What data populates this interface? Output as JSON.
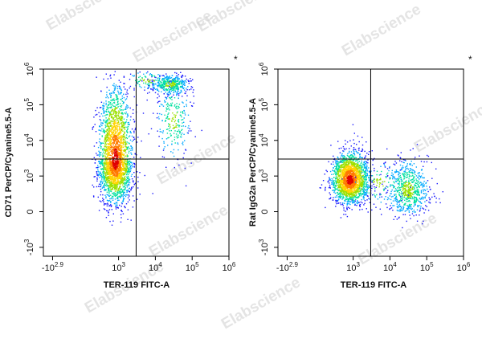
{
  "watermark": {
    "text": "Elabscience",
    "color": "#cccccc"
  },
  "colormap": [
    "#1a1aff",
    "#00a8ff",
    "#00e0a0",
    "#9be000",
    "#ffd400",
    "#ff7a00",
    "#e00000"
  ],
  "chart_data": [
    {
      "type": "scatter",
      "subtype": "flow-cytometry-density-plot",
      "xlabel": "TER-119 FITC-A",
      "ylabel": "CD71 PerCP/Cyanine5.5-A",
      "corner_mark": "*",
      "xscale": "biexponential",
      "yscale": "biexponential",
      "xticks": [
        {
          "value": -794,
          "base": "-10",
          "exp": "2.9"
        },
        {
          "value": 1000,
          "base": "10",
          "exp": "3"
        },
        {
          "value": 10000,
          "base": "10",
          "exp": "4"
        },
        {
          "value": 100000,
          "base": "10",
          "exp": "5"
        },
        {
          "value": 1000000,
          "base": "10",
          "exp": "6"
        }
      ],
      "yticks": [
        {
          "value": -1000,
          "base": "-10",
          "exp": "3"
        },
        {
          "value": 0,
          "base": "0",
          "exp": ""
        },
        {
          "value": 1000,
          "base": "10",
          "exp": "3"
        },
        {
          "value": 10000,
          "base": "10",
          "exp": "4"
        },
        {
          "value": 100000,
          "base": "10",
          "exp": "5"
        },
        {
          "value": 1000000,
          "base": "10",
          "exp": "6"
        }
      ],
      "gate": {
        "x": 3000,
        "y": 3000
      },
      "populations": [
        {
          "name": "CD71 high / TER-119 low",
          "x_center": 900,
          "y_center": 2500,
          "relative_density": "very high"
        },
        {
          "name": "CD71 high / TER-119 high",
          "x_center": 25000,
          "y_center": 400000,
          "relative_density": "moderate"
        },
        {
          "name": "CD71 mid / TER-119 mid",
          "x_center": 30000,
          "y_center": 50000,
          "relative_density": "low"
        }
      ]
    },
    {
      "type": "scatter",
      "subtype": "flow-cytometry-density-plot",
      "xlabel": "TER-119 FITC-A",
      "ylabel": "Rat IgG2a PerCP/Cyanine5.5-A",
      "corner_mark": "*",
      "xscale": "biexponential",
      "yscale": "biexponential",
      "xticks": [
        {
          "value": -794,
          "base": "-10",
          "exp": "2.9"
        },
        {
          "value": 1000,
          "base": "10",
          "exp": "3"
        },
        {
          "value": 10000,
          "base": "10",
          "exp": "4"
        },
        {
          "value": 100000,
          "base": "10",
          "exp": "5"
        },
        {
          "value": 1000000,
          "base": "10",
          "exp": "6"
        }
      ],
      "yticks": [
        {
          "value": -1000,
          "base": "-10",
          "exp": "3"
        },
        {
          "value": 0,
          "base": "0",
          "exp": ""
        },
        {
          "value": 1000,
          "base": "10",
          "exp": "3"
        },
        {
          "value": 10000,
          "base": "10",
          "exp": "4"
        },
        {
          "value": 100000,
          "base": "10",
          "exp": "5"
        },
        {
          "value": 1000000,
          "base": "10",
          "exp": "6"
        }
      ],
      "gate": {
        "x": 3000,
        "y": 3000
      },
      "populations": [
        {
          "name": "Isotype negative / TER-119 low",
          "x_center": 900,
          "y_center": 900,
          "relative_density": "very high"
        },
        {
          "name": "Isotype negative / TER-119 high",
          "x_center": 30000,
          "y_center": 600,
          "relative_density": "moderate"
        }
      ]
    }
  ]
}
